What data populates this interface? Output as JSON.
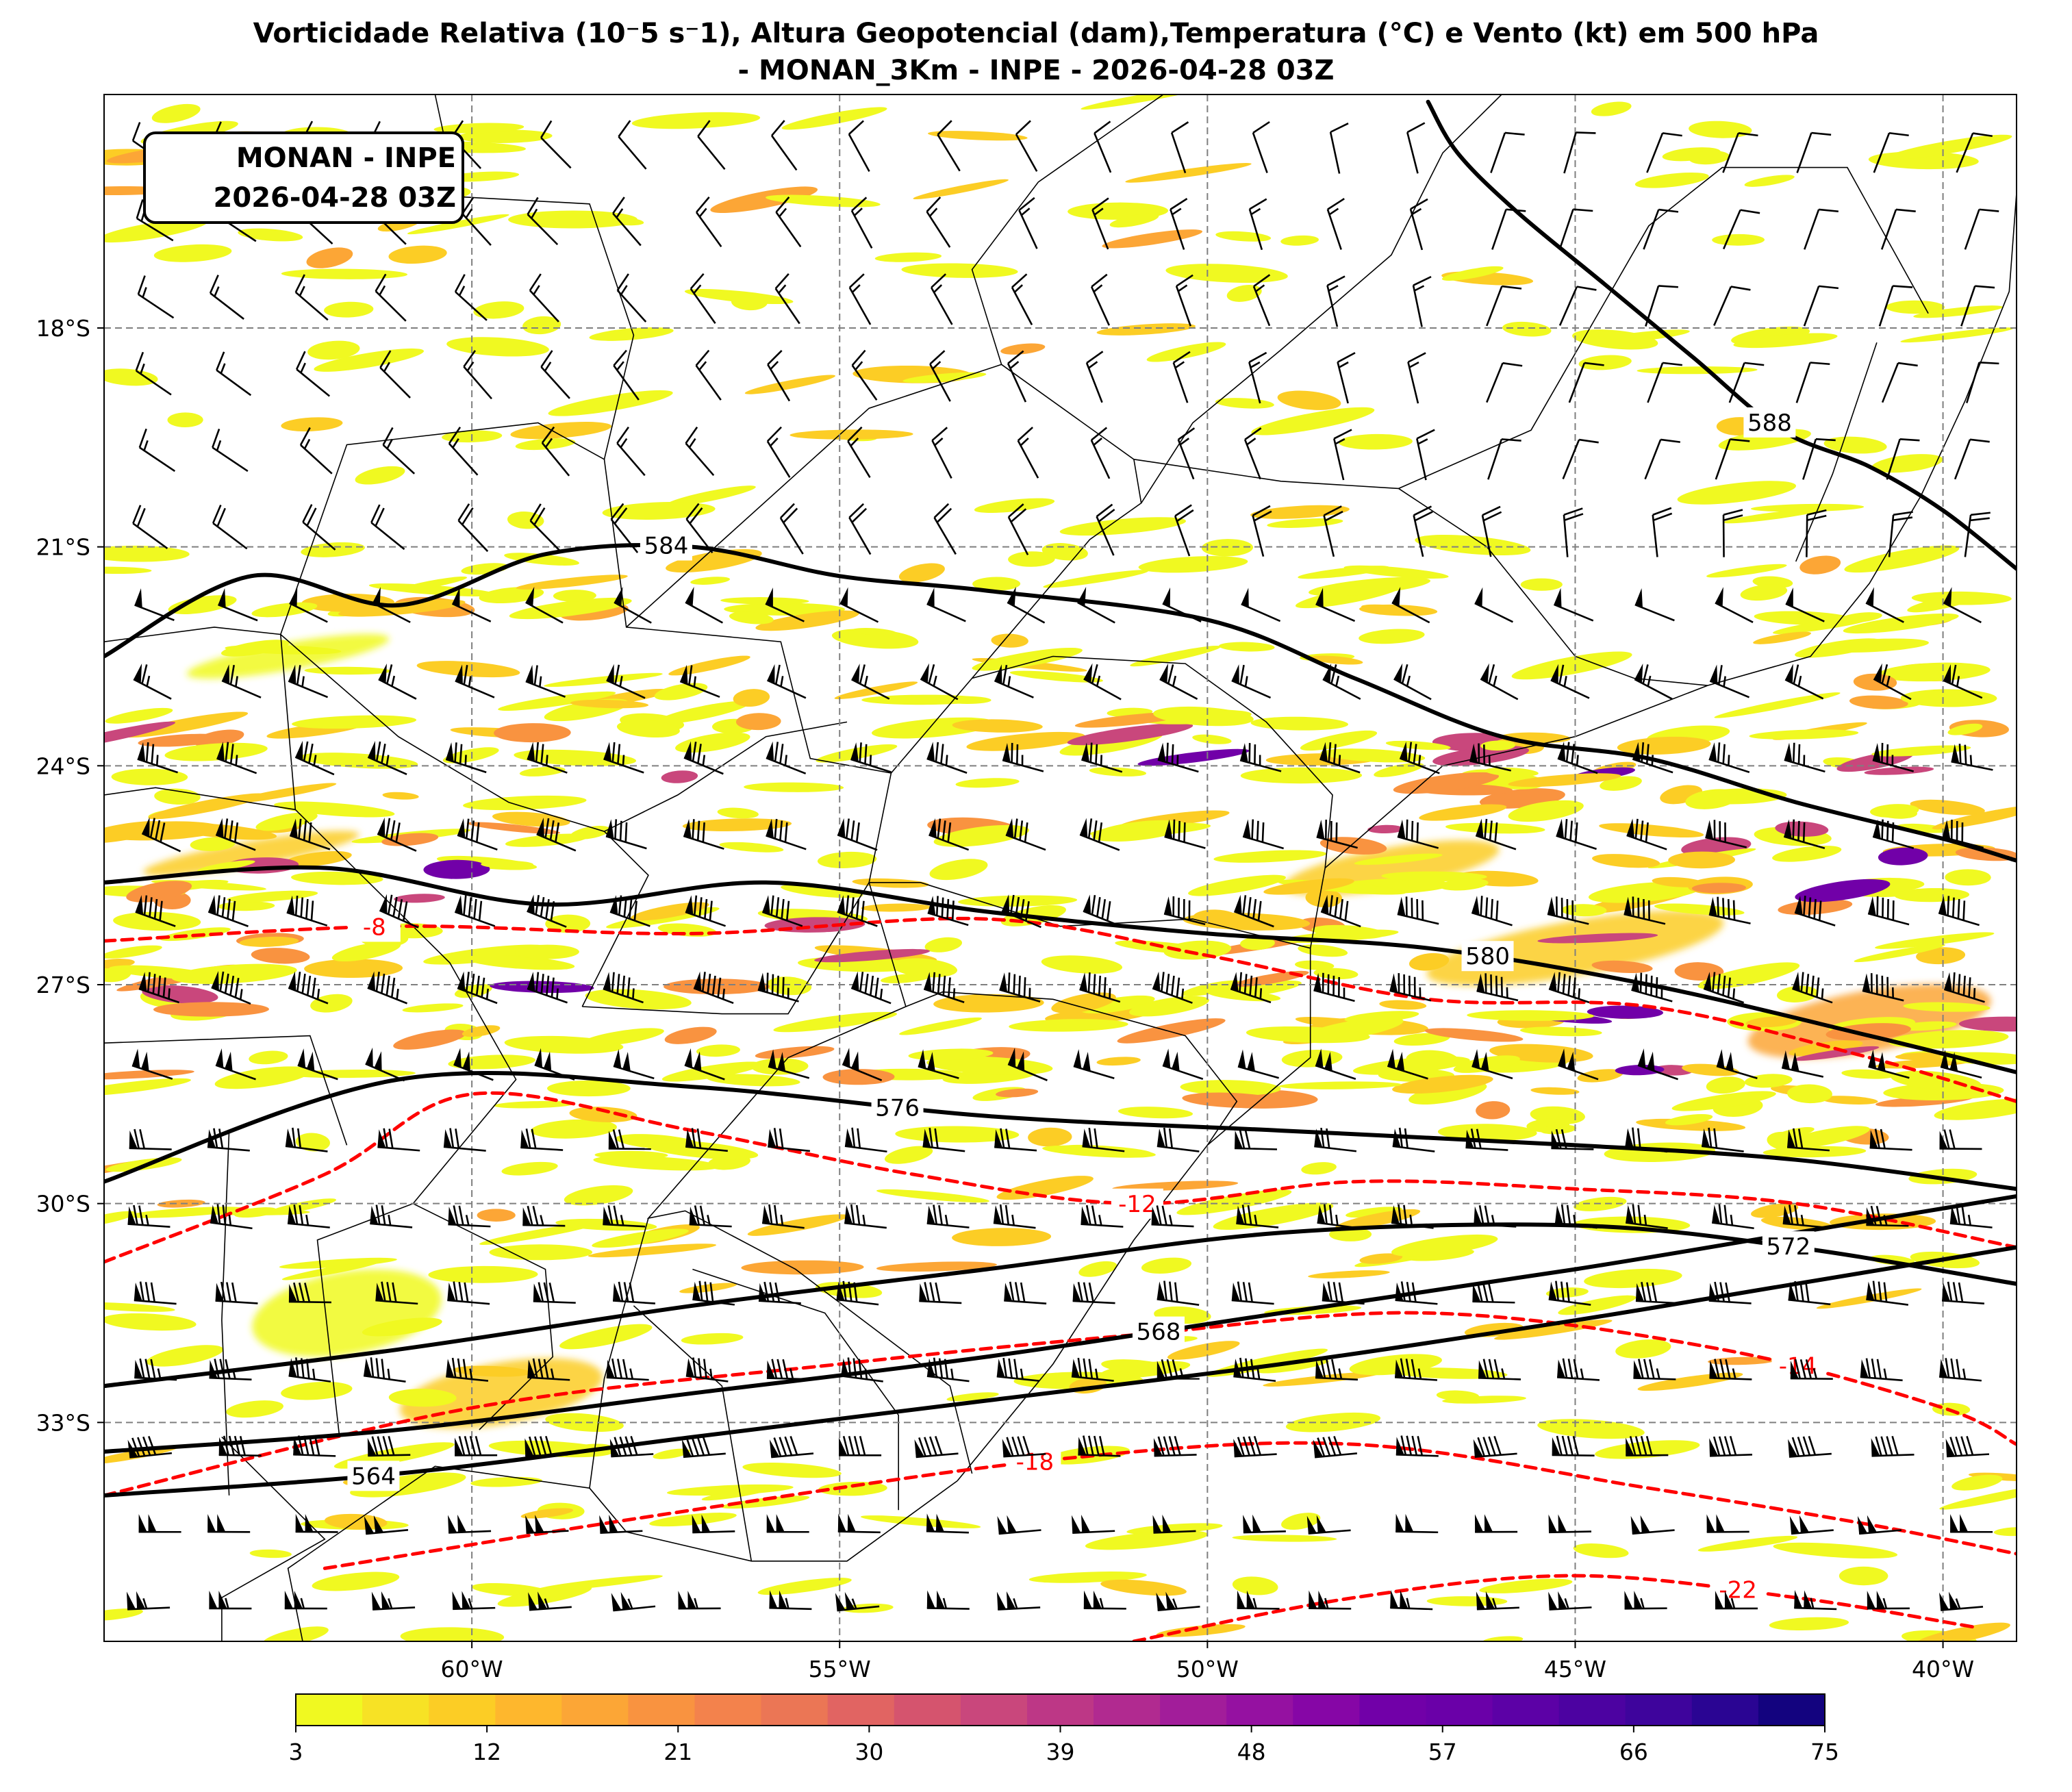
{
  "title": {
    "line1": "Vorticidade Relativa (10⁻5 s⁻1), Altura Geopotencial (dam),Temperatura (°C) e Vento (kt) em 500 hPa",
    "line2": "- MONAN_3Km - INPE - 2026-04-28 03Z"
  },
  "info_box": {
    "line1": "MONAN - INPE",
    "line2": "2026-04-28 03Z"
  },
  "map": {
    "lon_range": [
      -65,
      -39
    ],
    "lat_range": [
      -36.0,
      -14.8
    ],
    "lon_ticks": [
      {
        "value": -60,
        "label": "60°W"
      },
      {
        "value": -55,
        "label": "55°W"
      },
      {
        "value": -50,
        "label": "50°W"
      },
      {
        "value": -45,
        "label": "45°W"
      },
      {
        "value": -40,
        "label": "40°W"
      }
    ],
    "lat_ticks": [
      {
        "value": -18,
        "label": "18°S"
      },
      {
        "value": -21,
        "label": "21°S"
      },
      {
        "value": -24,
        "label": "24°S"
      },
      {
        "value": -27,
        "label": "27°S"
      },
      {
        "value": -30,
        "label": "30°S"
      },
      {
        "value": -33,
        "label": "33°S"
      }
    ],
    "gridlines": "dashed gray",
    "geopotential_contours": [
      {
        "label": "564",
        "color": "#000000",
        "points": [
          [
            -65,
            -34.0
          ],
          [
            -61,
            -33.7
          ],
          [
            -57,
            -33.2
          ],
          [
            -53,
            -32.7
          ],
          [
            -49,
            -32.2
          ],
          [
            -45,
            -31.6
          ],
          [
            -42,
            -31.1
          ],
          [
            -39,
            -30.6
          ]
        ]
      },
      {
        "label": "568",
        "color": "#000000",
        "points": [
          [
            -65,
            -33.4
          ],
          [
            -61,
            -33.1
          ],
          [
            -57,
            -32.6
          ],
          [
            -53,
            -32.1
          ],
          [
            -49,
            -31.5
          ],
          [
            -45,
            -30.9
          ],
          [
            -42,
            -30.4
          ],
          [
            -39,
            -29.9
          ]
        ]
      },
      {
        "label": "572",
        "color": "#000000",
        "points": [
          [
            -65,
            -32.5
          ],
          [
            -61,
            -32.0
          ],
          [
            -57,
            -31.4
          ],
          [
            -53,
            -30.9
          ],
          [
            -49,
            -30.4
          ],
          [
            -45,
            -30.3
          ],
          [
            -42,
            -30.6
          ],
          [
            -39,
            -31.1
          ]
        ]
      },
      {
        "label": "576",
        "color": "#000000",
        "points": [
          [
            -65,
            -29.7
          ],
          [
            -61,
            -28.3
          ],
          [
            -57,
            -28.4
          ],
          [
            -53,
            -28.8
          ],
          [
            -49,
            -29.0
          ],
          [
            -45,
            -29.2
          ],
          [
            -42,
            -29.4
          ],
          [
            -39,
            -29.8
          ]
        ]
      },
      {
        "label": "580",
        "color": "#000000",
        "points": [
          [
            -65,
            -25.6
          ],
          [
            -62,
            -25.4
          ],
          [
            -59,
            -25.9
          ],
          [
            -56,
            -25.6
          ],
          [
            -53,
            -26.0
          ],
          [
            -50,
            -26.3
          ],
          [
            -47,
            -26.5
          ],
          [
            -44,
            -27.0
          ],
          [
            -41,
            -27.7
          ],
          [
            -39,
            -28.2
          ]
        ]
      },
      {
        "label": "584",
        "color": "#000000",
        "points": [
          [
            -65,
            -22.5
          ],
          [
            -63,
            -21.4
          ],
          [
            -61,
            -21.8
          ],
          [
            -59,
            -21.1
          ],
          [
            -57,
            -21.0
          ],
          [
            -55,
            -21.4
          ],
          [
            -53,
            -21.6
          ],
          [
            -50,
            -22.0
          ],
          [
            -48,
            -22.8
          ],
          [
            -46,
            -23.6
          ],
          [
            -44,
            -23.9
          ],
          [
            -42,
            -24.5
          ],
          [
            -40,
            -25.0
          ],
          [
            -39,
            -25.3
          ]
        ]
      },
      {
        "label": "588",
        "color": "#000000",
        "points": [
          [
            -47,
            -14.9
          ],
          [
            -46.6,
            -15.6
          ],
          [
            -45.8,
            -16.4
          ],
          [
            -44.6,
            -17.4
          ],
          [
            -43.4,
            -18.4
          ],
          [
            -42.2,
            -19.4
          ],
          [
            -41,
            -19.9
          ],
          [
            -40,
            -20.5
          ],
          [
            -39,
            -21.3
          ]
        ]
      }
    ],
    "temperature_contours": [
      {
        "label": "-8",
        "color": "#ff0000",
        "points": [
          [
            -65,
            -26.4
          ],
          [
            -61,
            -26.2
          ],
          [
            -57,
            -26.3
          ],
          [
            -53,
            -26.1
          ],
          [
            -50,
            -26.6
          ],
          [
            -47,
            -27.2
          ],
          [
            -44,
            -27.3
          ],
          [
            -41,
            -28.0
          ],
          [
            -39,
            -28.6
          ]
        ]
      },
      {
        "label": "-12",
        "color": "#ff0000",
        "points": [
          [
            -65,
            -30.8
          ],
          [
            -62,
            -29.6
          ],
          [
            -60,
            -28.5
          ],
          [
            -57,
            -29.0
          ],
          [
            -54,
            -29.6
          ],
          [
            -51,
            -30.0
          ],
          [
            -48,
            -29.7
          ],
          [
            -45,
            -29.8
          ],
          [
            -42,
            -30.0
          ],
          [
            -39,
            -30.6
          ]
        ]
      },
      {
        "label": "-14",
        "color": "#ff0000",
        "points": [
          [
            -65,
            -34.0
          ],
          [
            -60,
            -32.8
          ],
          [
            -55,
            -32.2
          ],
          [
            -51,
            -31.8
          ],
          [
            -47,
            -31.5
          ],
          [
            -43,
            -32.0
          ],
          [
            -40,
            -32.8
          ],
          [
            -39,
            -33.3
          ]
        ]
      },
      {
        "label": "-18",
        "color": "#ff0000",
        "points": [
          [
            -62,
            -35.0
          ],
          [
            -57,
            -34.2
          ],
          [
            -52,
            -33.5
          ],
          [
            -48,
            -33.3
          ],
          [
            -44,
            -33.9
          ],
          [
            -41,
            -34.4
          ],
          [
            -39,
            -34.8
          ]
        ]
      },
      {
        "label": "-22",
        "color": "#ff0000",
        "points": [
          [
            -51,
            -36.0
          ],
          [
            -48,
            -35.4
          ],
          [
            -45,
            -35.1
          ],
          [
            -42,
            -35.4
          ],
          [
            -39.6,
            -35.8
          ]
        ]
      }
    ]
  },
  "colorbar": {
    "ticks": [
      "3",
      "12",
      "21",
      "30",
      "39",
      "48",
      "57",
      "66",
      "75"
    ],
    "colors": [
      "#f0f921",
      "#f7e225",
      "#fccd25",
      "#feb72d",
      "#fca636",
      "#f99340",
      "#f3824c",
      "#eb7655",
      "#e16462",
      "#d5546e",
      "#c9477c",
      "#bd3786",
      "#b12a90",
      "#a21d9a",
      "#9511a1",
      "#8606a6",
      "#7100a8",
      "#6a00a8",
      "#5c01a6",
      "#4c02a1",
      "#3e049c",
      "#2a0593",
      "#13037f"
    ]
  },
  "colors": {
    "gridline": "#7f7f7f",
    "vorticity_low": "#f0f921",
    "vorticity_high": "#0d0887",
    "geopotential": "#000000",
    "temperature": "#ff0000"
  }
}
